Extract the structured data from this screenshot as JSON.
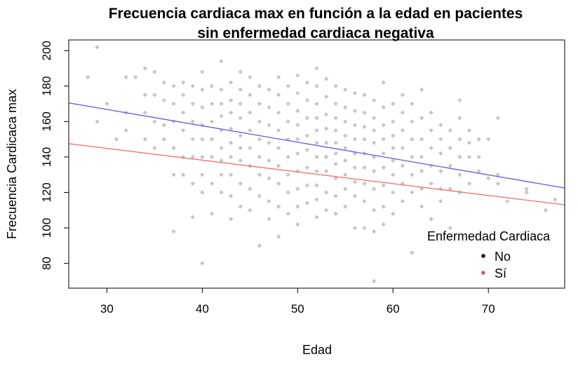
{
  "chart_data": {
    "type": "scatter",
    "title_line1": "Frecuencia cardiaca max en función a la edad en pacientes",
    "title_line2": "sin enfermedad cardiaca negativa",
    "xlabel": "Edad",
    "ylabel": "Frecuencia Cardicaca max",
    "xlim": [
      26,
      78
    ],
    "ylim": [
      66,
      206
    ],
    "x_ticks": [
      30,
      40,
      50,
      60,
      70
    ],
    "y_ticks": [
      80,
      100,
      120,
      140,
      160,
      180,
      200
    ],
    "grid": false,
    "legend": {
      "title": "Enfermedad Cardiaca",
      "position": "bottom-right",
      "entries": [
        {
          "label": "No",
          "color": "#000000"
        },
        {
          "label": "Sí",
          "color": "#cd5c5c"
        }
      ]
    },
    "colors": {
      "points": "#808080",
      "fit_no": "#5a5ae6",
      "fit_si": "#ef6f6f"
    },
    "fit_lines": [
      {
        "name": "No",
        "color": "#5a5ae6",
        "x": [
          26,
          78
        ],
        "y": [
          170.5,
          122.5
        ]
      },
      {
        "name": "Sí",
        "color": "#ef6f6f",
        "x": [
          26,
          78
        ],
        "y": [
          147.5,
          113
        ]
      }
    ],
    "points": [
      [
        28,
        185
      ],
      [
        29,
        202
      ],
      [
        29,
        160
      ],
      [
        30,
        170
      ],
      [
        31,
        150
      ],
      [
        32,
        185
      ],
      [
        32,
        165
      ],
      [
        32,
        155
      ],
      [
        33,
        185
      ],
      [
        34,
        190
      ],
      [
        34,
        175
      ],
      [
        34,
        165
      ],
      [
        34,
        150
      ],
      [
        35,
        188
      ],
      [
        35,
        175
      ],
      [
        35,
        160
      ],
      [
        35,
        145
      ],
      [
        36,
        182
      ],
      [
        36,
        172
      ],
      [
        36,
        158
      ],
      [
        36,
        150
      ],
      [
        37,
        180
      ],
      [
        37,
        170
      ],
      [
        37,
        160
      ],
      [
        37,
        145
      ],
      [
        37,
        130
      ],
      [
        37,
        98
      ],
      [
        38,
        182
      ],
      [
        38,
        175
      ],
      [
        38,
        165
      ],
      [
        38,
        155
      ],
      [
        38,
        140
      ],
      [
        38,
        130
      ],
      [
        39,
        180
      ],
      [
        39,
        170
      ],
      [
        39,
        160
      ],
      [
        39,
        150
      ],
      [
        39,
        140
      ],
      [
        39,
        106
      ],
      [
        39,
        125
      ],
      [
        40,
        188
      ],
      [
        40,
        178
      ],
      [
        40,
        168
      ],
      [
        40,
        158
      ],
      [
        40,
        150
      ],
      [
        40,
        140
      ],
      [
        40,
        130
      ],
      [
        40,
        120
      ],
      [
        40,
        80
      ],
      [
        41,
        180
      ],
      [
        41,
        170
      ],
      [
        41,
        160
      ],
      [
        41,
        150
      ],
      [
        41,
        140
      ],
      [
        41,
        125
      ],
      [
        41,
        108
      ],
      [
        42,
        194
      ],
      [
        42,
        178
      ],
      [
        42,
        170
      ],
      [
        42,
        163
      ],
      [
        42,
        155
      ],
      [
        42,
        145
      ],
      [
        42,
        138
      ],
      [
        42,
        130
      ],
      [
        42,
        120
      ],
      [
        43,
        182
      ],
      [
        43,
        172
      ],
      [
        43,
        165
      ],
      [
        43,
        156
      ],
      [
        43,
        148
      ],
      [
        43,
        140
      ],
      [
        43,
        130
      ],
      [
        43,
        118
      ],
      [
        43,
        105
      ],
      [
        44,
        188
      ],
      [
        44,
        178
      ],
      [
        44,
        170
      ],
      [
        44,
        162
      ],
      [
        44,
        152
      ],
      [
        44,
        145
      ],
      [
        44,
        138
      ],
      [
        44,
        125
      ],
      [
        44,
        112
      ],
      [
        45,
        185
      ],
      [
        45,
        175
      ],
      [
        45,
        165
      ],
      [
        45,
        155
      ],
      [
        45,
        145
      ],
      [
        45,
        135
      ],
      [
        45,
        122
      ],
      [
        45,
        110
      ],
      [
        46,
        180
      ],
      [
        46,
        170
      ],
      [
        46,
        160
      ],
      [
        46,
        150
      ],
      [
        46,
        140
      ],
      [
        46,
        130
      ],
      [
        46,
        118
      ],
      [
        46,
        90
      ],
      [
        47,
        178
      ],
      [
        47,
        168
      ],
      [
        47,
        158
      ],
      [
        47,
        148
      ],
      [
        47,
        138
      ],
      [
        47,
        128
      ],
      [
        47,
        115
      ],
      [
        47,
        105
      ],
      [
        48,
        185
      ],
      [
        48,
        175
      ],
      [
        48,
        165
      ],
      [
        48,
        155
      ],
      [
        48,
        145
      ],
      [
        48,
        135
      ],
      [
        48,
        125
      ],
      [
        48,
        112
      ],
      [
        48,
        95
      ],
      [
        49,
        180
      ],
      [
        49,
        170
      ],
      [
        49,
        160
      ],
      [
        49,
        150
      ],
      [
        49,
        140
      ],
      [
        49,
        130
      ],
      [
        49,
        120
      ],
      [
        49,
        108
      ],
      [
        50,
        186
      ],
      [
        50,
        176
      ],
      [
        50,
        166
      ],
      [
        50,
        158
      ],
      [
        50,
        150
      ],
      [
        50,
        142
      ],
      [
        50,
        132
      ],
      [
        50,
        122
      ],
      [
        50,
        112
      ],
      [
        50,
        102
      ],
      [
        51,
        182
      ],
      [
        51,
        172
      ],
      [
        51,
        162
      ],
      [
        51,
        152
      ],
      [
        51,
        144
      ],
      [
        51,
        134
      ],
      [
        51,
        124
      ],
      [
        51,
        114
      ],
      [
        52,
        190
      ],
      [
        52,
        180
      ],
      [
        52,
        170
      ],
      [
        52,
        162
      ],
      [
        52,
        155
      ],
      [
        52,
        148
      ],
      [
        52,
        140
      ],
      [
        52,
        132
      ],
      [
        52,
        124
      ],
      [
        52,
        116
      ],
      [
        52,
        106
      ],
      [
        53,
        184
      ],
      [
        53,
        174
      ],
      [
        53,
        164
      ],
      [
        53,
        156
      ],
      [
        53,
        148
      ],
      [
        53,
        140
      ],
      [
        53,
        132
      ],
      [
        53,
        120
      ],
      [
        53,
        110
      ],
      [
        54,
        180
      ],
      [
        54,
        170
      ],
      [
        54,
        162
      ],
      [
        54,
        155
      ],
      [
        54,
        148
      ],
      [
        54,
        142
      ],
      [
        54,
        136
      ],
      [
        54,
        128
      ],
      [
        54,
        118
      ],
      [
        54,
        108
      ],
      [
        55,
        178
      ],
      [
        55,
        168
      ],
      [
        55,
        160
      ],
      [
        55,
        152
      ],
      [
        55,
        145
      ],
      [
        55,
        138
      ],
      [
        55,
        130
      ],
      [
        55,
        122
      ],
      [
        55,
        112
      ],
      [
        56,
        176
      ],
      [
        56,
        166
      ],
      [
        56,
        158
      ],
      [
        56,
        150
      ],
      [
        56,
        142
      ],
      [
        56,
        134
      ],
      [
        56,
        126
      ],
      [
        56,
        118
      ],
      [
        56,
        100
      ],
      [
        57,
        175
      ],
      [
        57,
        165
      ],
      [
        57,
        157
      ],
      [
        57,
        150
      ],
      [
        57,
        142
      ],
      [
        57,
        134
      ],
      [
        57,
        125
      ],
      [
        57,
        115
      ],
      [
        57,
        100
      ],
      [
        58,
        172
      ],
      [
        58,
        162
      ],
      [
        58,
        155
      ],
      [
        58,
        148
      ],
      [
        58,
        140
      ],
      [
        58,
        132
      ],
      [
        58,
        122
      ],
      [
        58,
        110
      ],
      [
        58,
        98
      ],
      [
        58,
        70
      ],
      [
        59,
        182
      ],
      [
        59,
        168
      ],
      [
        59,
        158
      ],
      [
        59,
        150
      ],
      [
        59,
        142
      ],
      [
        59,
        134
      ],
      [
        59,
        124
      ],
      [
        59,
        112
      ],
      [
        59,
        102
      ],
      [
        60,
        170
      ],
      [
        60,
        160
      ],
      [
        60,
        152
      ],
      [
        60,
        145
      ],
      [
        60,
        138
      ],
      [
        60,
        130
      ],
      [
        60,
        120
      ],
      [
        60,
        108
      ],
      [
        61,
        175
      ],
      [
        61,
        165
      ],
      [
        61,
        155
      ],
      [
        61,
        145
      ],
      [
        61,
        135
      ],
      [
        61,
        125
      ],
      [
        61,
        115
      ],
      [
        62,
        170
      ],
      [
        62,
        160
      ],
      [
        62,
        150
      ],
      [
        62,
        140
      ],
      [
        62,
        130
      ],
      [
        62,
        120
      ],
      [
        62,
        86
      ],
      [
        63,
        178
      ],
      [
        63,
        162
      ],
      [
        63,
        150
      ],
      [
        63,
        140
      ],
      [
        63,
        132
      ],
      [
        63,
        122
      ],
      [
        63,
        112
      ],
      [
        64,
        165
      ],
      [
        64,
        155
      ],
      [
        64,
        145
      ],
      [
        64,
        135
      ],
      [
        64,
        125
      ],
      [
        64,
        105
      ],
      [
        65,
        158
      ],
      [
        65,
        150
      ],
      [
        65,
        142
      ],
      [
        65,
        132
      ],
      [
        65,
        122
      ],
      [
        65,
        115
      ],
      [
        66,
        155
      ],
      [
        66,
        145
      ],
      [
        66,
        135
      ],
      [
        66,
        122
      ],
      [
        66,
        100
      ],
      [
        67,
        172
      ],
      [
        67,
        162
      ],
      [
        67,
        150
      ],
      [
        67,
        140
      ],
      [
        67,
        130
      ],
      [
        67,
        120
      ],
      [
        68,
        155
      ],
      [
        68,
        148
      ],
      [
        68,
        140
      ],
      [
        68,
        125
      ],
      [
        69,
        150
      ],
      [
        69,
        140
      ],
      [
        69,
        132
      ],
      [
        70,
        150
      ],
      [
        70,
        128
      ],
      [
        71,
        162
      ],
      [
        71,
        130
      ],
      [
        71,
        125
      ],
      [
        72,
        115
      ],
      [
        74,
        120
      ],
      [
        74,
        122
      ],
      [
        76,
        110
      ],
      [
        77,
        116
      ]
    ]
  }
}
